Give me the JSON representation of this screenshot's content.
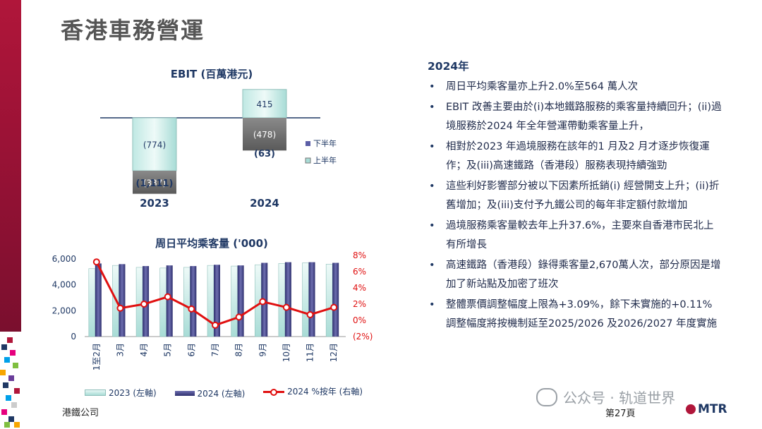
{
  "page": {
    "title": "香港車務營運",
    "company": "港鐵公司",
    "page_number": "第27頁"
  },
  "watermark": {
    "text": "公众号 · 轨道世界",
    "icon": "wechat-icon"
  },
  "logo": {
    "text": "MTR",
    "icon": "mtr-logo-icon"
  },
  "colors": {
    "brand_red": "#b0163a",
    "navy": "#1f3864",
    "series_2023": "#a8dcd6",
    "series_2024": "#3a3b7a",
    "pct_line": "#e01010"
  },
  "ebit": {
    "title": "EBIT (百萬港元)",
    "legend": [
      "下半年",
      "上半年"
    ],
    "chart_data": {
      "type": "bar",
      "categories": [
        "2023",
        "2024"
      ],
      "series": [
        {
          "name": "上半年",
          "values": [
            -774,
            415
          ]
        },
        {
          "name": "下半年",
          "values": [
            -337,
            -478
          ]
        }
      ],
      "labels": {
        "2023": [
          "(774)",
          "(337)"
        ],
        "2024": [
          "415",
          "(478)"
        ]
      },
      "totals": [
        "(1,111)",
        "(63)"
      ]
    }
  },
  "ridership": {
    "title": "周日平均乘客量 ('000)",
    "legend": [
      "2023 (左軸)",
      "2024 (左軸)",
      "2024 %按年 (右軸)"
    ],
    "chart_data": {
      "type": "bar",
      "categories": [
        "1至2月",
        "3月",
        "4月",
        "5月",
        "6月",
        "7月",
        "8月",
        "9月",
        "10月",
        "11月",
        "12月"
      ],
      "series": [
        {
          "name": "2023 (左軸)",
          "values": [
            5250,
            5500,
            5350,
            5300,
            5350,
            5500,
            5450,
            5550,
            5650,
            5700,
            5600
          ]
        },
        {
          "name": "2024 (左軸)",
          "values": [
            5650,
            5600,
            5450,
            5500,
            5450,
            5550,
            5500,
            5700,
            5750,
            5750,
            5700
          ]
        },
        {
          "name": "2024 %按年 (右軸)",
          "values": [
            7.2,
            1.5,
            2.0,
            2.9,
            1.4,
            -0.6,
            0.4,
            2.3,
            1.6,
            0.7,
            1.6
          ]
        }
      ],
      "left_axis": {
        "ticks": [
          "0",
          "2,000",
          "4,000",
          "6,000"
        ],
        "ylim": [
          0,
          6000
        ]
      },
      "right_axis": {
        "ticks": [
          "(2%)",
          "0%",
          "2%",
          "4%",
          "6%",
          "8%"
        ],
        "ylim": [
          -2,
          8
        ]
      }
    }
  },
  "notes": {
    "heading": "2024年",
    "bullets": [
      "周日平均乘客量亦上升2.0%至564 萬人次",
      "EBIT 改善主要由於(i)本地鐵路服務的乘客量持續回升；(ii)過境服務於2024 年全年營運帶動乘客量上升，",
      "相對於2023 年過境服務在該年的1 月及2 月才逐步恢復運作；及(iii)高速鐵路（香港段）服務表現持續強勁",
      "這些利好影響部分被以下因素所抵銷(i) 經營開支上升；(ii)折舊增加；及(iii)支付予九鐵公司的每年非定額付款增加",
      "過境服務乘客量較去年上升37.6%，主要來自香港市民北上有所增長",
      "高速鐵路（香港段）錄得乘客量2,670萬人次，部分原因是增加了新站點及加密了班次",
      "整體票價調整幅度上限為+3.09%，餘下未實施的+0.11% 調整幅度將按機制延至2025/2026 及2026/2027 年度實施"
    ]
  }
}
